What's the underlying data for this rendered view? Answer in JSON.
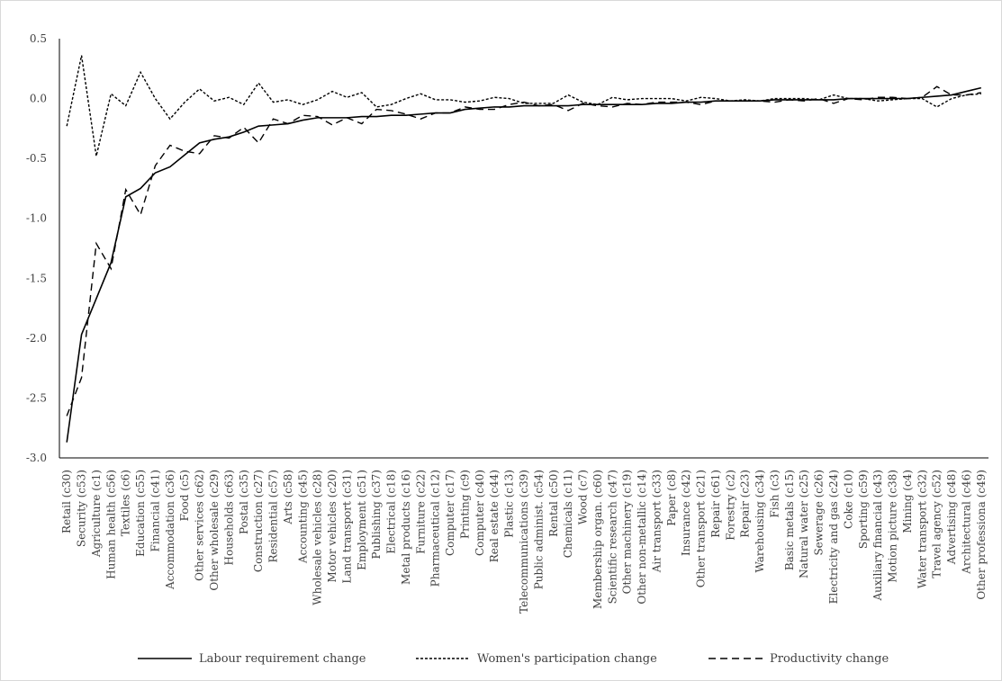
{
  "chart_data": {
    "type": "line",
    "title": "",
    "xlabel": "",
    "ylabel": "",
    "ylim": [
      -3.0,
      0.5
    ],
    "yticks": [
      0.5,
      0.0,
      -0.5,
      -1.0,
      -1.5,
      -2.0,
      -2.5,
      -3.0
    ],
    "ytick_labels": [
      "0.5",
      "0.0",
      "-0.5",
      "-1.0",
      "-1.5",
      "-2.0",
      "-2.5",
      "-3.0"
    ],
    "grid": false,
    "legend_position": "bottom",
    "categories": [
      "Retail (c30)",
      "Security (c53)",
      "Agriculture (c1)",
      "Human health (c56)",
      "Textiles (c6)",
      "Education (c55)",
      "Financial (c41)",
      "Accommodation (c36)",
      "Food (c5)",
      "Other services (c62)",
      "Other wholesale (c29)",
      "Households (c63)",
      "Postal (c35)",
      "Construction (c27)",
      "Residential (c57)",
      "Arts (c58)",
      "Accounting (c45)",
      "Wholesale vehicles (c28)",
      "Motor vehicles (c20)",
      "Land transport (c31)",
      "Employment (c51)",
      "Publishing (c37)",
      "Electrical (c18)",
      "Metal products (c16)",
      "Furniture (c22)",
      "Pharmaceutical (c12)",
      "Computer (c17)",
      "Printing (c9)",
      "Computer (c40)",
      "Real estate (c44)",
      "Plastic (c13)",
      "Telecommunications (c39)",
      "Public administ. (c54)",
      "Rental (c50)",
      "Chemicals (c11)",
      "Wood (c7)",
      "Membership organ. (c60)",
      "Scientific research (c47)",
      "Other machinery (c19)",
      "Other non-metallic (c14)",
      "Air transport (c33)",
      "Paper (c8)",
      "Insurance (c42)",
      "Other transport (c21)",
      "Repair (c61)",
      "Forestry (c2)",
      "Repair (c23)",
      "Warehousing (c34)",
      "Fish (c3)",
      "Basic metals (c15)",
      "Natural water (c25)",
      "Sewerage (c26)",
      "Electricity and gas (c24)",
      "Coke (c10)",
      "Sporting (c59)",
      "Auxiliary financial (c43)",
      "Motion picture (c38)",
      "Mining (c4)",
      "Water transport (c32)",
      "Travel agency (c52)",
      "Advertising (c48)",
      "Architectural (c46)",
      "Other professiona (c49)"
    ],
    "series": [
      {
        "name": "Labour requirement change",
        "dash": "solid",
        "values": [
          -2.87,
          -1.97,
          -1.67,
          -1.37,
          -0.82,
          -0.75,
          -0.62,
          -0.57,
          -0.47,
          -0.37,
          -0.34,
          -0.32,
          -0.28,
          -0.23,
          -0.22,
          -0.21,
          -0.18,
          -0.16,
          -0.16,
          -0.16,
          -0.15,
          -0.15,
          -0.14,
          -0.14,
          -0.13,
          -0.12,
          -0.12,
          -0.09,
          -0.08,
          -0.07,
          -0.07,
          -0.06,
          -0.06,
          -0.06,
          -0.06,
          -0.05,
          -0.05,
          -0.05,
          -0.05,
          -0.05,
          -0.04,
          -0.04,
          -0.03,
          -0.03,
          -0.02,
          -0.02,
          -0.02,
          -0.02,
          -0.01,
          -0.01,
          -0.01,
          -0.01,
          -0.01,
          0.0,
          0.0,
          0.0,
          0.0,
          0.0,
          0.01,
          0.02,
          0.03,
          0.06,
          0.09
        ]
      },
      {
        "name": "Women's participation change",
        "dash": "dotted",
        "values": [
          -0.23,
          0.36,
          -0.48,
          0.04,
          -0.06,
          0.22,
          0.0,
          -0.17,
          -0.03,
          0.08,
          -0.02,
          0.01,
          -0.05,
          0.13,
          -0.03,
          -0.01,
          -0.05,
          -0.01,
          0.06,
          0.01,
          0.05,
          -0.07,
          -0.05,
          0.0,
          0.04,
          -0.01,
          -0.01,
          -0.03,
          -0.02,
          0.01,
          0.0,
          -0.04,
          -0.04,
          -0.04,
          0.03,
          -0.03,
          -0.05,
          0.01,
          -0.01,
          0.0,
          0.0,
          0.0,
          -0.02,
          0.01,
          0.0,
          -0.02,
          -0.01,
          -0.02,
          0.0,
          0.0,
          0.0,
          -0.01,
          0.03,
          0.0,
          0.0,
          -0.02,
          -0.01,
          0.0,
          0.0,
          -0.07,
          0.0,
          0.03,
          0.04
        ]
      },
      {
        "name": "Productivity change",
        "dash": "dashed",
        "values": [
          -2.65,
          -2.33,
          -1.21,
          -1.42,
          -0.76,
          -0.97,
          -0.56,
          -0.39,
          -0.44,
          -0.46,
          -0.31,
          -0.33,
          -0.24,
          -0.37,
          -0.17,
          -0.21,
          -0.14,
          -0.15,
          -0.22,
          -0.16,
          -0.21,
          -0.09,
          -0.1,
          -0.13,
          -0.17,
          -0.12,
          -0.12,
          -0.07,
          -0.09,
          -0.09,
          -0.05,
          -0.03,
          -0.06,
          -0.05,
          -0.1,
          -0.04,
          -0.06,
          -0.07,
          -0.04,
          -0.05,
          -0.03,
          -0.03,
          -0.03,
          -0.05,
          -0.02,
          -0.02,
          -0.02,
          -0.02,
          -0.03,
          -0.01,
          -0.02,
          0.0,
          -0.04,
          0.0,
          -0.01,
          0.01,
          0.01,
          0.0,
          0.01,
          0.1,
          0.03,
          0.03,
          0.05
        ]
      }
    ]
  }
}
